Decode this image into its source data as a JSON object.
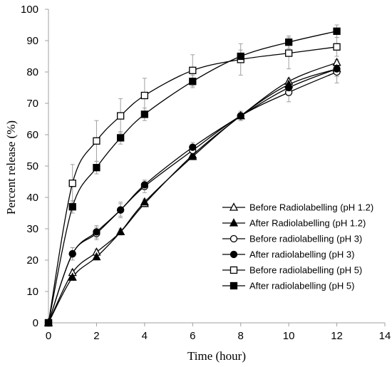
{
  "chart_data": {
    "type": "scatter",
    "title": "",
    "xlabel": "Time (hour)",
    "ylabel": "Percent release (%)",
    "xlim": [
      0,
      14
    ],
    "ylim": [
      0,
      100
    ],
    "xticks": [
      0,
      2,
      4,
      6,
      8,
      10,
      12,
      14
    ],
    "yticks": [
      0,
      10,
      20,
      30,
      40,
      50,
      60,
      70,
      80,
      90,
      100
    ],
    "grid": false,
    "legend_position": "bottom-right",
    "lines_smooth": true,
    "x": [
      0,
      1,
      2,
      3,
      4,
      6,
      8,
      10,
      12
    ],
    "series": [
      {
        "name": "Before Radiolabelling (pH 1.2)",
        "marker": "triangle",
        "filled": false,
        "values": [
          0,
          16,
          22.5,
          29,
          38,
          53.5,
          66,
          77,
          83
        ],
        "errors": [
          0,
          1,
          1,
          1,
          1,
          1,
          1,
          1,
          1
        ]
      },
      {
        "name": "After Radiolabelling (pH 1.2)",
        "marker": "triangle",
        "filled": true,
        "values": [
          0,
          14.5,
          21,
          29,
          38.5,
          53,
          66,
          76,
          81
        ],
        "errors": [
          0,
          1,
          1,
          1,
          1,
          1,
          1,
          1,
          1
        ]
      },
      {
        "name": "Before radiolabelling (pH 3)",
        "marker": "circle",
        "filled": false,
        "values": [
          0,
          22,
          28.5,
          36,
          43.5,
          55,
          66,
          73.5,
          80
        ],
        "errors": [
          0,
          2,
          2,
          2.5,
          2,
          1.5,
          1.5,
          3,
          3.5
        ]
      },
      {
        "name": "After radiolabelling (pH 3)",
        "marker": "circle",
        "filled": true,
        "values": [
          0,
          22,
          29,
          36,
          44,
          56,
          66,
          75,
          81
        ],
        "errors": [
          0,
          2,
          2,
          2,
          1.5,
          1.5,
          1.5,
          2.5,
          2.5
        ]
      },
      {
        "name": "Before radiolabelling (pH 5)",
        "marker": "square",
        "filled": false,
        "values": [
          0,
          44.5,
          58,
          66,
          72.5,
          80.5,
          84,
          86,
          88
        ],
        "errors": [
          0,
          6,
          6.5,
          5.5,
          5.5,
          5,
          5,
          5,
          3
        ]
      },
      {
        "name": "After radiolabelling (pH 5)",
        "marker": "square",
        "filled": true,
        "values": [
          0,
          37,
          49.5,
          59,
          66.5,
          77,
          85,
          89.5,
          93
        ],
        "errors": [
          0,
          2,
          2,
          2,
          2,
          2,
          2,
          2,
          2
        ]
      }
    ],
    "colors": {
      "line": "#000000",
      "error_bar": "#a0a0a0",
      "axis": "#a0a0a0"
    }
  }
}
